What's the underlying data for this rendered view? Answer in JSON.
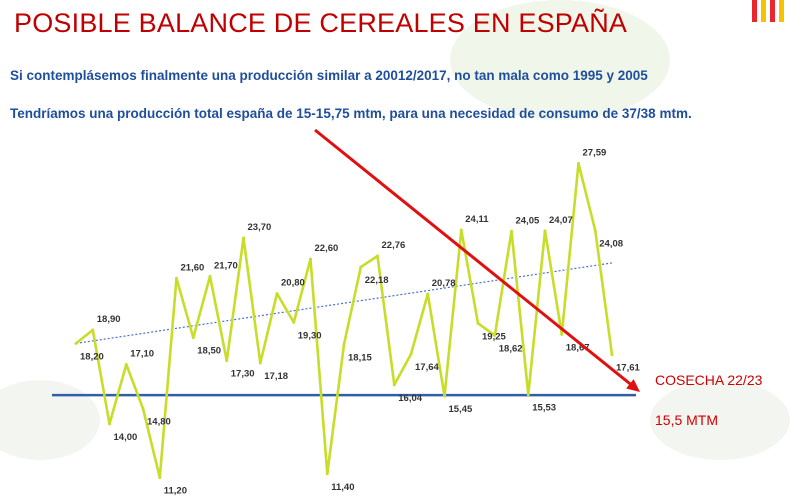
{
  "header": {
    "title": "POSIBLE BALANCE DE CEREALES EN ESPAÑA",
    "subtitle1": "Si contemplásemos finalmente una producción similar a 20012/2017, no tan mala como 1995 y 2005",
    "subtitle2": "Tendríamos una producción total españa de 15-15,75 mtm, para una necesidad de consumo de 37/38 mtm."
  },
  "colors": {
    "title": "#c00000",
    "subtitle": "#1f4e9c",
    "series": "#c8dc2a",
    "trend": "#4a6fd0",
    "baseline": "#2e5fa8",
    "arrow": "#e01010",
    "annotation": "#d00000",
    "flag_red": "#e8262b",
    "flag_yellow": "#f7c200"
  },
  "icons": {
    "flag": "spain-flag-icon"
  },
  "annotations": {
    "forecast_label": "COSECHA 22/23",
    "baseline_label": "15,5 MTM"
  },
  "chart_data": {
    "type": "line",
    "title": "",
    "xlabel": "",
    "ylabel": "",
    "ylim": [
      10.5,
      28.5
    ],
    "grid": false,
    "series": [
      {
        "values": [
          18.2,
          18.9,
          14.0,
          17.1,
          14.8,
          11.2,
          21.6,
          18.5,
          21.7,
          17.3,
          23.7,
          17.18,
          20.8,
          19.3,
          22.6,
          11.4,
          18.15,
          22.18,
          22.76,
          16.04,
          17.64,
          20.78,
          15.45,
          24.11,
          19.25,
          18.62,
          24.05,
          15.53,
          24.07,
          18.67,
          27.59,
          24.08,
          17.61
        ],
        "labels": [
          "18,20",
          "18,90",
          "14,00",
          "17,10",
          "14,80",
          "11,20",
          "21,60",
          "18,50",
          "21,70",
          "17,30",
          "23,70",
          "17,18",
          "20,80",
          "19,30",
          "22,60",
          "11,40",
          "18,15",
          "22,18",
          "22,76",
          "16,04",
          "17,64",
          "20,78",
          "15,45",
          "24,11",
          "19,25",
          "18,62",
          "24,05",
          "15,53",
          "24,07",
          "18,67",
          "27,59",
          "24,08",
          "17,61"
        ]
      }
    ],
    "trendline": {
      "start": 18.2,
      "end": 22.4
    },
    "reference_line": 15.5
  }
}
